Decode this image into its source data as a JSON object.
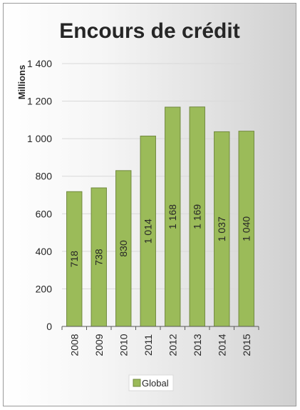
{
  "chart_data": {
    "type": "bar",
    "title": "Encours de crédit",
    "ylabel": "Millions",
    "xlabel": "",
    "categories": [
      "2008",
      "2009",
      "2010",
      "2011",
      "2012",
      "2013",
      "2014",
      "2015"
    ],
    "series": [
      {
        "name": "Global",
        "values": [
          718,
          738,
          830,
          1014,
          1168,
          1169,
          1037,
          1040
        ],
        "labels": [
          "718",
          "738",
          "830",
          "1 014",
          "1 168",
          "1 169",
          "1 037",
          "1 040"
        ]
      }
    ],
    "ylim": [
      0,
      1400
    ],
    "yticks": [
      0,
      200,
      400,
      600,
      800,
      1000,
      1200,
      1400
    ],
    "ytick_labels": [
      "0",
      "200",
      "400",
      "600",
      "800",
      "1 000",
      "1 200",
      "1 400"
    ],
    "grid": true,
    "legend_position": "bottom",
    "colors": {
      "bar_fill": "#9bbb59",
      "bar_stroke": "#71893f",
      "gridline": "#d9d9d9",
      "axis": "#595959"
    }
  }
}
